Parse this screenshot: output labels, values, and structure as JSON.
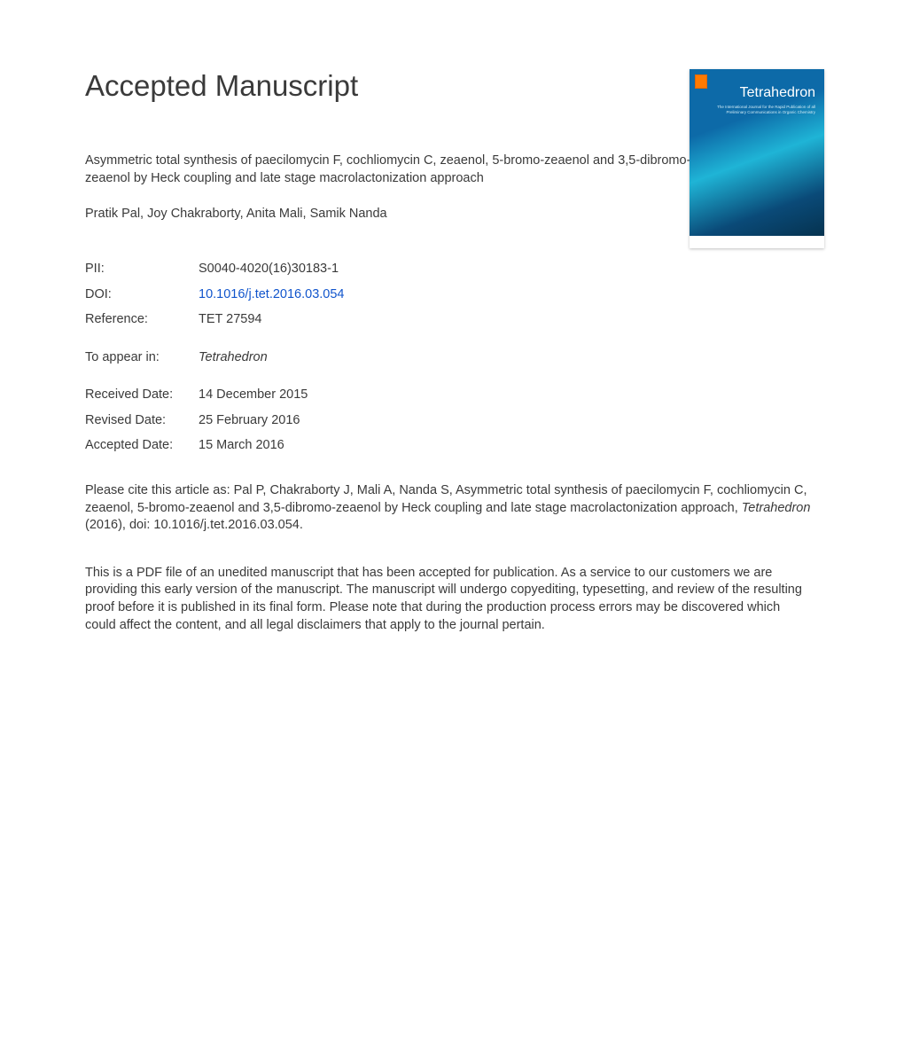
{
  "page": {
    "heading": "Accepted Manuscript",
    "title": "Asymmetric total synthesis of paecilomycin F, cochliomycin C, zeaenol, 5-bromo-zeaenol and 3,5-dibromo-zeaenol by Heck coupling and late stage macrolactonization approach",
    "authors": "Pratik Pal, Joy Chakraborty, Anita Mali, Samik Nanda"
  },
  "cover": {
    "journal_title": "Tetrahedron",
    "subtitle": "The International Journal for the Rapid Publication of all Preliminary Communications in Organic Chemistry"
  },
  "meta": {
    "pii_label": "PII:",
    "pii_value": "S0040-4020(16)30183-1",
    "doi_label": "DOI:",
    "doi_value": "10.1016/j.tet.2016.03.054",
    "ref_label": "Reference:",
    "ref_value": "TET 27594",
    "appear_label": "To appear in:",
    "appear_value": "Tetrahedron",
    "recv_label": "Received Date:",
    "recv_value": "14 December 2015",
    "rev_label": "Revised Date:",
    "rev_value": "25 February 2016",
    "acc_label": "Accepted Date:",
    "acc_value": "15 March 2016"
  },
  "citation": {
    "prefix": "Please cite this article as: Pal P, Chakraborty J, Mali A, Nanda S, Asymmetric total synthesis of paecilomycin F, cochliomycin C, zeaenol, 5-bromo-zeaenol and 3,5-dibromo-zeaenol by Heck coupling and late stage macrolactonization approach, ",
    "journal": "Tetrahedron",
    "suffix": " (2016), doi: 10.1016/j.tet.2016.03.054."
  },
  "disclaimer": "This is a PDF file of an unedited manuscript that has been accepted for publication. As a service to our customers we are providing this early version of the manuscript. The manuscript will undergo copyediting, typesetting, and review of the resulting proof before it is published in its final form. Please note that during the production process errors may be discovered which could affect the content, and all legal disclaimers that apply to the journal pertain.",
  "colors": {
    "text": "#3a3a3a",
    "link": "#1155cc",
    "cover_gradient_top": "#0d6aa8",
    "cover_gradient_mid": "#1fb4d6",
    "cover_gradient_bottom": "#042c44",
    "background": "#ffffff"
  },
  "typography": {
    "heading_fontsize": 33,
    "body_fontsize": 14.5,
    "font_family": "Arial"
  }
}
